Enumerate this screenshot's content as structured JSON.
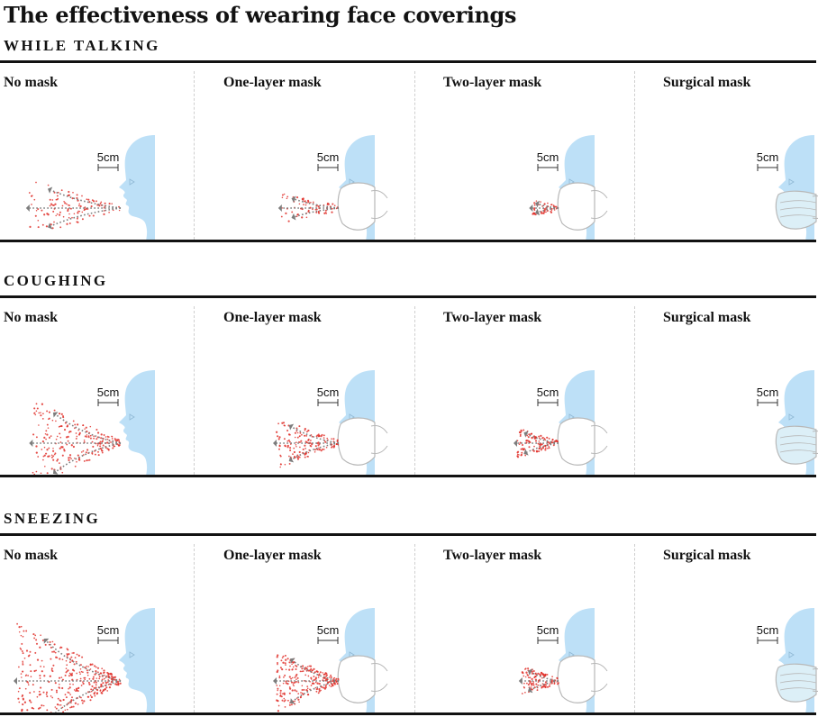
{
  "title": "The effectiveness of wearing face coverings",
  "scale_label": "5cm",
  "colors": {
    "face": "#bde0f7",
    "mask": "#ffffff",
    "mask_outline": "#b8b8b8",
    "surgical_tint": "#dceff7",
    "droplet": "#e0302a",
    "arrow": "#7d7d7d",
    "rule": "#121212"
  },
  "sections": [
    {
      "label": "WHILE TALKING",
      "panels": [
        {
          "label": "No mask",
          "mask": "none",
          "reach": 0.88,
          "spread": 0.45,
          "density": 110
        },
        {
          "label": "One-layer mask",
          "mask": "cloth",
          "reach": 0.55,
          "spread": 0.35,
          "density": 70
        },
        {
          "label": "Two-layer mask",
          "mask": "cloth",
          "reach": 0.25,
          "spread": 0.35,
          "density": 50
        },
        {
          "label": "Surgical mask",
          "mask": "surgical",
          "reach": 0,
          "spread": 0,
          "density": 0
        }
      ]
    },
    {
      "label": "COUGHING",
      "panels": [
        {
          "label": "No mask",
          "mask": "none",
          "reach": 0.85,
          "spread": 0.75,
          "density": 230
        },
        {
          "label": "One-layer mask",
          "mask": "cloth",
          "reach": 0.6,
          "spread": 0.6,
          "density": 150
        },
        {
          "label": "Two-layer mask",
          "mask": "cloth",
          "reach": 0.4,
          "spread": 0.5,
          "density": 110
        },
        {
          "label": "Surgical mask",
          "mask": "surgical",
          "reach": 0,
          "spread": 0,
          "density": 0
        }
      ]
    },
    {
      "label": "SNEEZING",
      "panels": [
        {
          "label": "No mask",
          "mask": "none",
          "reach": 1.0,
          "spread": 0.9,
          "density": 380
        },
        {
          "label": "One-layer mask",
          "mask": "cloth",
          "reach": 0.6,
          "spread": 0.75,
          "density": 230
        },
        {
          "label": "Two-layer mask",
          "mask": "cloth",
          "reach": 0.35,
          "spread": 0.55,
          "density": 110
        },
        {
          "label": "Surgical mask",
          "mask": "surgical",
          "reach": 0,
          "spread": 0,
          "density": 0
        }
      ]
    }
  ]
}
